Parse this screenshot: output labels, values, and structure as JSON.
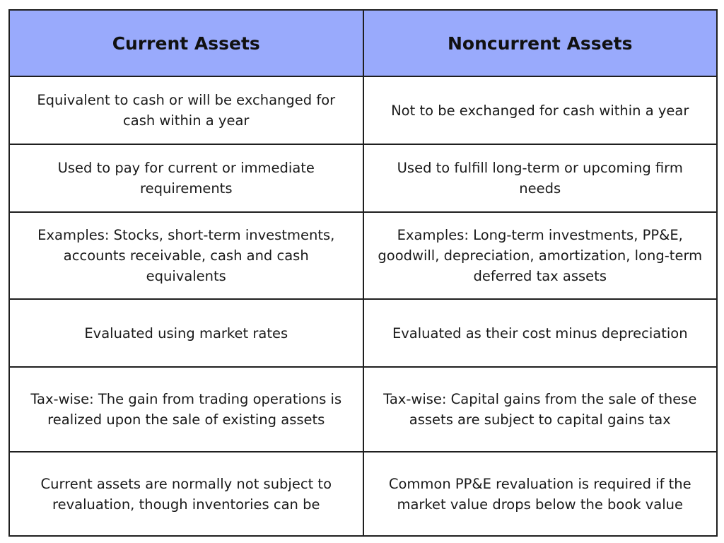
{
  "table": {
    "headers": [
      "Current Assets",
      "Noncurrent Assets"
    ],
    "rows": [
      [
        "Equivalent to cash or will be exchanged for cash within a year",
        "Not to be exchanged for cash within a year"
      ],
      [
        "Used to pay for current or immediate requirements",
        "Used to fulfill long-term or upcoming firm needs"
      ],
      [
        "Examples: Stocks, short-term investments, accounts receivable, cash and cash equivalents",
        "Examples: Long-term investments, PP&E, goodwill, depreciation, amortization, long-term deferred tax assets"
      ],
      [
        "Evaluated using market rates",
        "Evaluated as their cost minus depreciation"
      ],
      [
        "Tax-wise: The gain from trading operations is realized upon the sale of existing assets",
        "Tax-wise: Capital gains from the sale of these assets are subject to capital gains tax"
      ],
      [
        "Current assets are normally not subject to revaluation, though inventories can be",
        "Common PP&E revaluation is required if the market value drops below the book value"
      ]
    ]
  },
  "colors": {
    "header_bg": "#99aafc",
    "border": "#1f1f1f",
    "text": "#1a1a1a"
  }
}
